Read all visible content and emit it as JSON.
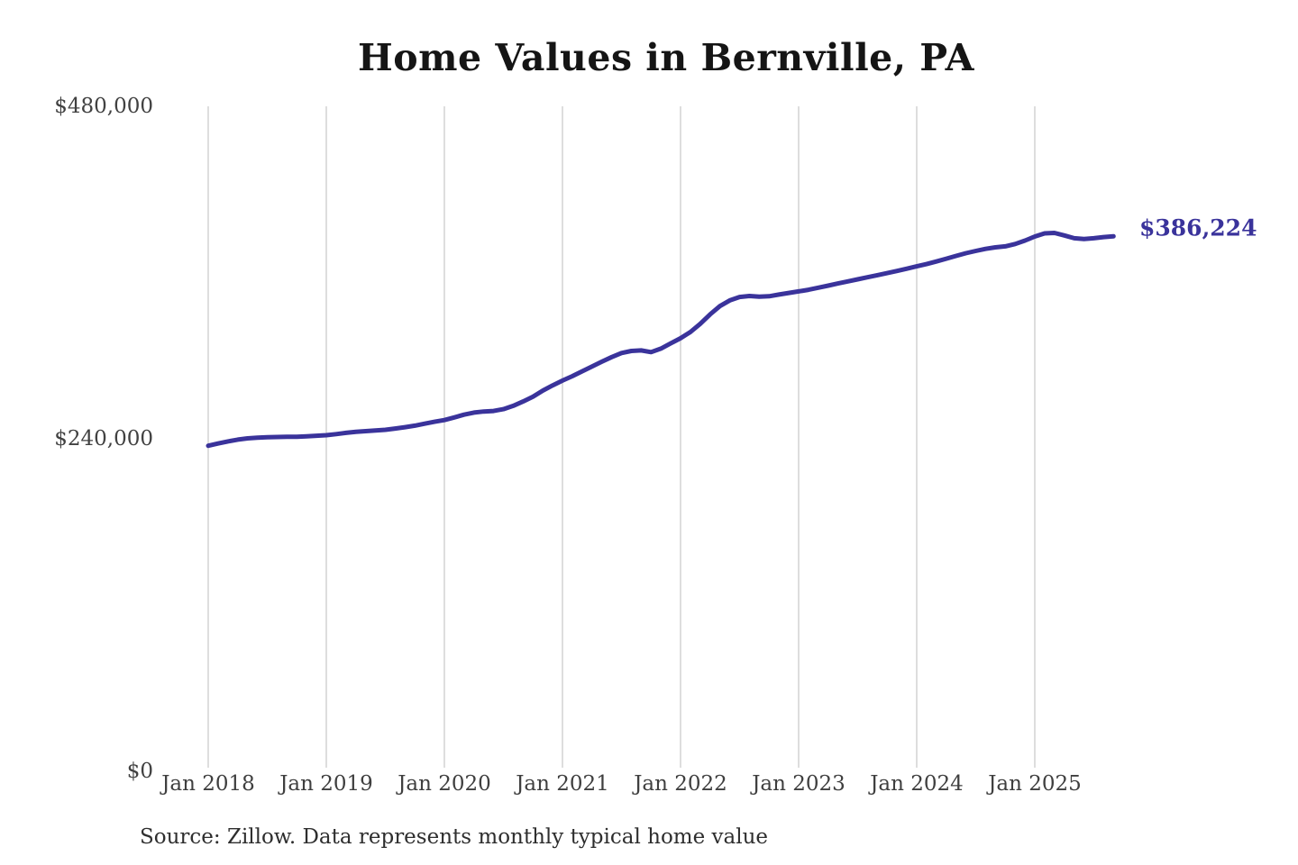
{
  "chart": {
    "title": "Home Values in Bernville, PA",
    "latest_label": "$386,224",
    "source": "Source: Zillow. Data represents monthly typical home value",
    "colors": {
      "line": "#3a339b",
      "latest_label": "#3a339b",
      "grid": "#cbcbcb",
      "title_text": "#151515",
      "axis_text": "#3f3f3f"
    }
  },
  "chart_data": {
    "type": "line",
    "title": "Home Values in Bernville, PA",
    "ylabel": "",
    "xlabel": "",
    "ylim": [
      0,
      480000
    ],
    "y_tick_values": [
      0,
      240000,
      480000
    ],
    "y_tick_labels": [
      "$0",
      "$240,000",
      "$480,000"
    ],
    "x_tick_labels": [
      "Jan 2018",
      "Jan 2019",
      "Jan 2020",
      "Jan 2021",
      "Jan 2022",
      "Jan 2023",
      "Jan 2024",
      "Jan 2025"
    ],
    "grid": "vertical-only",
    "legend": "none",
    "x_start_month": "2018-01",
    "x_end_month": "2025-09",
    "latest_value": 386224,
    "series": [
      {
        "name": "Monthly typical home value",
        "values": [
          235000,
          236600,
          238100,
          239400,
          240300,
          240800,
          241100,
          241300,
          241400,
          241500,
          241800,
          242200,
          242600,
          243400,
          244300,
          245000,
          245500,
          246000,
          246500,
          247400,
          248400,
          249500,
          250900,
          252300,
          253500,
          255400,
          257400,
          258900,
          259700,
          260100,
          261400,
          263800,
          266900,
          270400,
          274800,
          278600,
          282000,
          285200,
          288700,
          292200,
          295700,
          299000,
          301900,
          303400,
          303800,
          302600,
          305100,
          308900,
          312600,
          317100,
          323000,
          329800,
          335800,
          339900,
          342400,
          343100,
          342600,
          342900,
          344100,
          345300,
          346400,
          347600,
          349100,
          350600,
          352100,
          353600,
          355100,
          356600,
          358100,
          359600,
          361200,
          362800,
          364500,
          366100,
          368000,
          370000,
          372000,
          374000,
          375600,
          377100,
          378200,
          378900,
          380600,
          383100,
          386000,
          388300,
          388600,
          386800,
          384800,
          384200,
          384800,
          385600,
          386224
        ]
      }
    ]
  }
}
